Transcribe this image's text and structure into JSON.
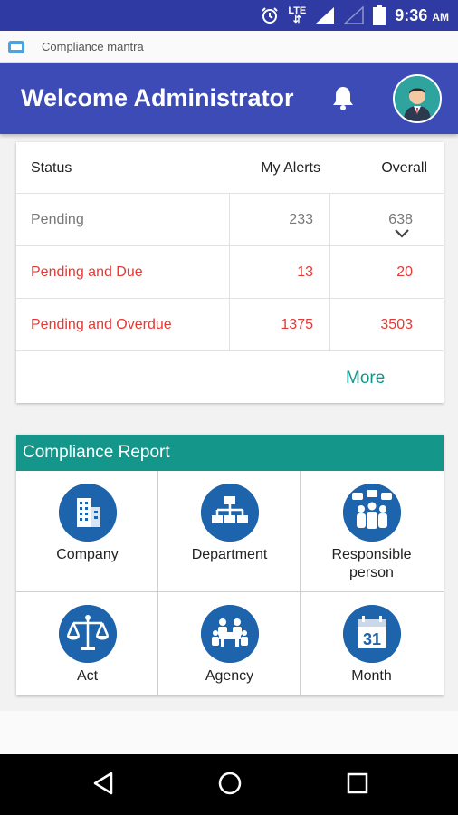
{
  "status_bar": {
    "time": "9:36",
    "ampm": "AM",
    "network": "LTE"
  },
  "task": {
    "title": "Compliance mantra"
  },
  "header": {
    "title": "Welcome Administrator"
  },
  "status_table": {
    "headers": [
      "Status",
      "My Alerts",
      "Overall"
    ],
    "rows": [
      {
        "status": "Pending",
        "my_alerts": "233",
        "overall": "638"
      },
      {
        "status": "Pending and Due",
        "my_alerts": "13",
        "overall": "20"
      },
      {
        "status": "Pending and Overdue",
        "my_alerts": "1375",
        "overall": "3503"
      }
    ],
    "more_label": "More"
  },
  "report": {
    "title": "Compliance Report",
    "tiles": [
      {
        "label": "Company",
        "icon": "building-icon"
      },
      {
        "label": "Department",
        "icon": "org-chart-icon"
      },
      {
        "label": "Responsible person",
        "label_line1": "Responsible",
        "label_line2": "person",
        "icon": "people-chat-icon"
      },
      {
        "label": "Act",
        "icon": "scales-icon"
      },
      {
        "label": "Agency",
        "icon": "meeting-icon"
      },
      {
        "label": "Month",
        "icon": "calendar-icon"
      }
    ],
    "calendar_day": "31"
  },
  "colors": {
    "primary": "#3c4bb5",
    "status_bar": "#2f3ba3",
    "accent": "#14978a",
    "alert_red": "#e53935",
    "icon_blue": "#1e64ac"
  }
}
